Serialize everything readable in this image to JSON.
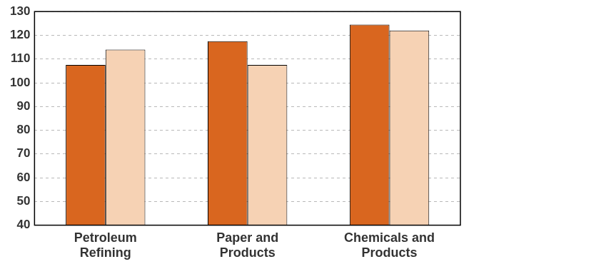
{
  "chart_data": {
    "type": "bar",
    "categories": [
      "Petroleum Refining",
      "Paper and Products",
      "Chemicals and Products"
    ],
    "series": [
      {
        "color": "#d9661f",
        "values": [
          107.5,
          117.5,
          124.5
        ]
      },
      {
        "color": "#f6d2b4",
        "values": [
          114,
          107.5,
          122
        ]
      }
    ],
    "ylim": [
      40,
      130
    ],
    "yticks": [
      40,
      50,
      60,
      70,
      80,
      90,
      100,
      110,
      120,
      130
    ],
    "grid": true
  }
}
